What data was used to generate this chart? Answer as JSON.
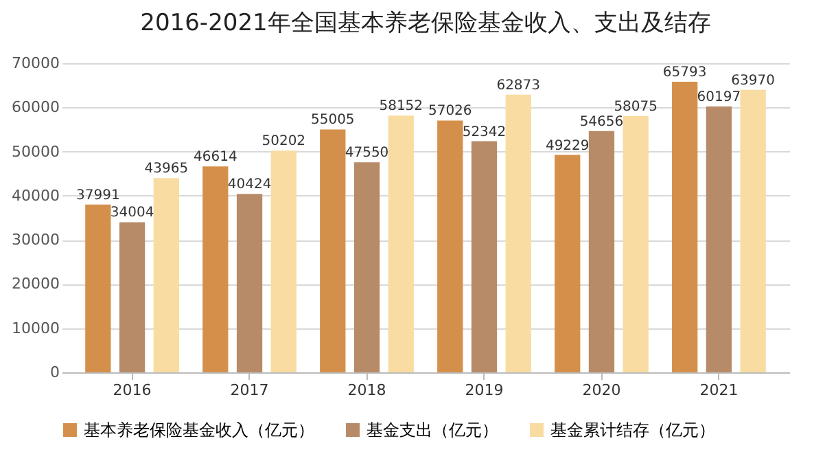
{
  "chart_data": {
    "type": "bar",
    "title": "2016-2021年全国基本养老保险基金收入、支出及结存",
    "categories": [
      "2016",
      "2017",
      "2018",
      "2019",
      "2020",
      "2021"
    ],
    "series": [
      {
        "name": "基本养老保险基金收入（亿元）",
        "color": "#d4904a",
        "values": [
          37991,
          46614,
          55005,
          57026,
          49229,
          65793
        ]
      },
      {
        "name": "基金支出（亿元）",
        "color": "#b88b68",
        "values": [
          34004,
          40424,
          47550,
          52342,
          54656,
          60197
        ]
      },
      {
        "name": "基金累计结存（亿元）",
        "color": "#f8dca2",
        "values": [
          43965,
          50202,
          58152,
          62873,
          58075,
          63970
        ]
      }
    ],
    "ylim": [
      0,
      70000
    ],
    "yticks": [
      0,
      10000,
      20000,
      30000,
      40000,
      50000,
      60000,
      70000
    ],
    "grid": "y",
    "legend": "bottom",
    "data_labels": true
  }
}
